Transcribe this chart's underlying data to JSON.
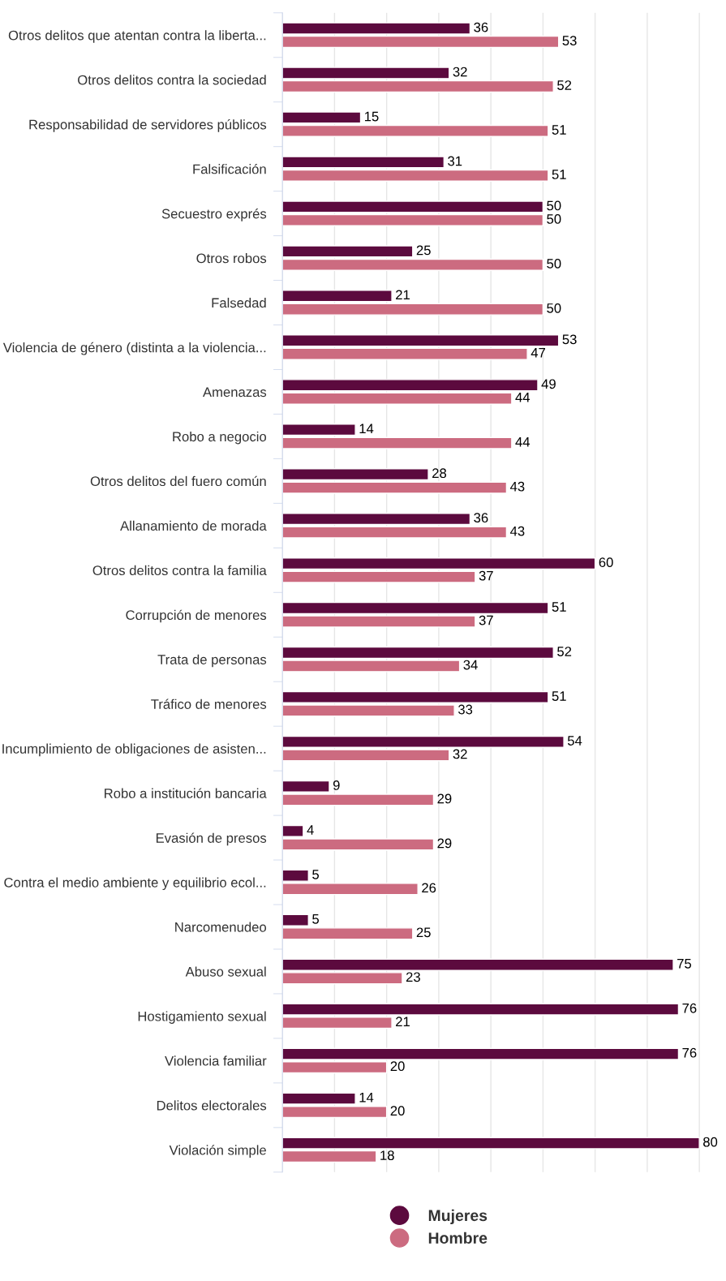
{
  "chart_data": {
    "type": "bar",
    "orientation": "horizontal",
    "categories": [
      "Otros delitos que atentan contra la liberta...",
      "Otros delitos contra la sociedad",
      "Responsabilidad de servidores públicos",
      "Falsificación",
      "Secuestro exprés",
      "Otros robos",
      "Falsedad",
      "Violencia de género (distinta a la violencia...",
      "Amenazas",
      "Robo a negocio",
      "Otros delitos del fuero común",
      "Allanamiento de morada",
      "Otros delitos contra la familia",
      "Corrupción de menores",
      "Trata de personas",
      "Tráfico de menores",
      "Incumplimiento de obligaciones de asisten...",
      "Robo a institución bancaria",
      "Evasión de presos",
      "Contra el medio ambiente y equilibrio ecol...",
      "Narcomenudeo",
      "Abuso sexual",
      "Hostigamiento sexual",
      "Violencia familiar",
      "Delitos electorales",
      "Violación simple"
    ],
    "series": [
      {
        "name": "Mujeres",
        "color": "#5c0a3e",
        "values": [
          36,
          32,
          15,
          31,
          50,
          25,
          21,
          53,
          49,
          14,
          28,
          36,
          60,
          51,
          52,
          51,
          54,
          9,
          4,
          5,
          5,
          75,
          76,
          76,
          14,
          80
        ]
      },
      {
        "name": "Hombre",
        "color": "#cc6b80",
        "values": [
          53,
          52,
          51,
          51,
          50,
          50,
          50,
          47,
          44,
          44,
          43,
          43,
          37,
          37,
          34,
          33,
          32,
          29,
          29,
          26,
          25,
          23,
          21,
          20,
          20,
          18
        ]
      }
    ],
    "xticks": [
      {
        "value": 0,
        "label": null
      },
      {
        "value": 10,
        "label": null
      },
      {
        "value": 20,
        "label": null
      },
      {
        "value": 30,
        "label": null
      },
      {
        "value": 40,
        "label": null
      },
      {
        "value": 50,
        "label": null
      },
      {
        "value": 60,
        "label": null
      },
      {
        "value": 70,
        "label": null
      },
      {
        "value": 80,
        "label": null
      }
    ],
    "tick_labels": "y",
    "grid": "x",
    "data_labels": true,
    "legend": "bottom",
    "marker": "circle"
  }
}
